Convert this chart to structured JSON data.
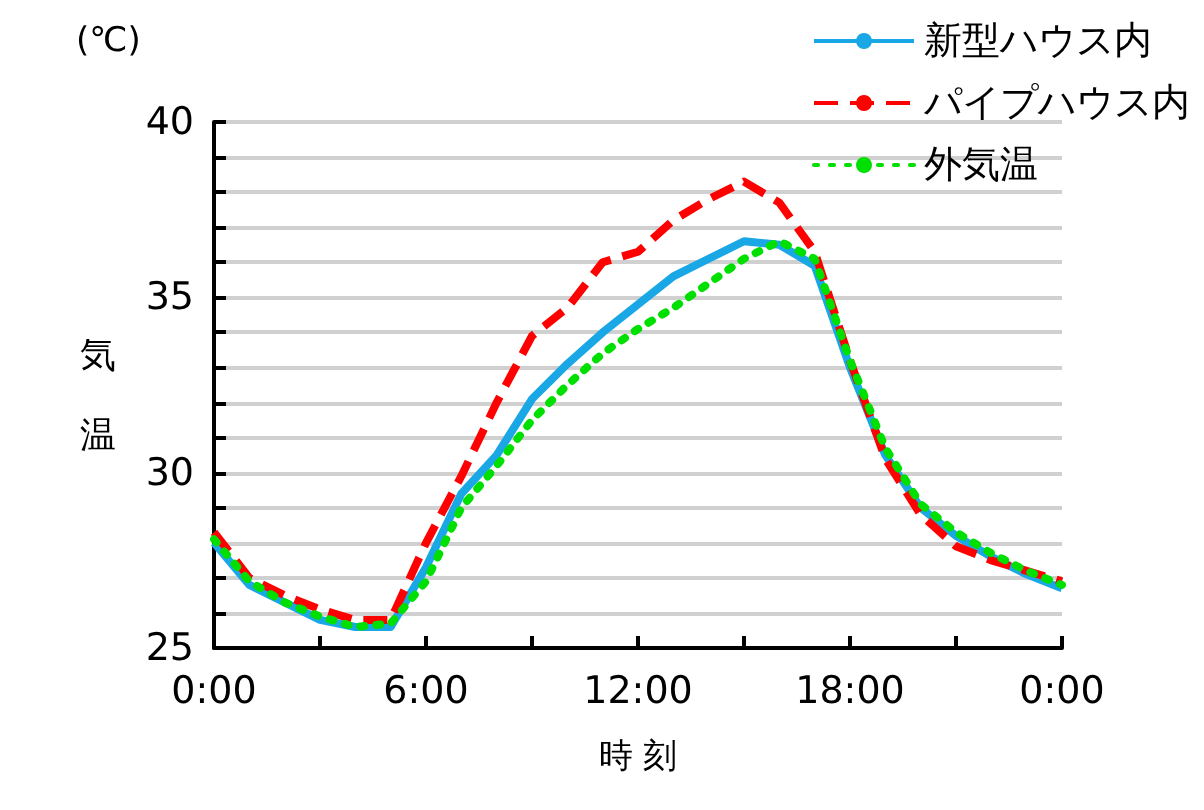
{
  "chart_data": {
    "type": "line",
    "xlabel": "時 刻",
    "ylabel": "気温",
    "annotations": [
      "(℃)"
    ],
    "x": [
      0,
      1,
      2,
      3,
      4,
      5,
      6,
      7,
      8,
      9,
      10,
      11,
      12,
      13,
      14,
      15,
      16,
      17,
      18,
      19,
      20,
      21,
      22,
      23,
      24
    ],
    "xlim": [
      0,
      24
    ],
    "xticks": [
      {
        "value": 0,
        "label": "0:00"
      },
      {
        "value": 3,
        "label": null
      },
      {
        "value": 6,
        "label": "6:00"
      },
      {
        "value": 9,
        "label": null
      },
      {
        "value": 12,
        "label": "12:00"
      },
      {
        "value": 15,
        "label": null
      },
      {
        "value": 18,
        "label": "18:00"
      },
      {
        "value": 21,
        "label": null
      },
      {
        "value": 24,
        "label": "0:00"
      }
    ],
    "ylim": [
      25,
      40
    ],
    "yticks": [
      25,
      {
        "value": 26,
        "label": null
      },
      {
        "value": 27,
        "label": null
      },
      {
        "value": 28,
        "label": null
      },
      {
        "value": 29,
        "label": null
      },
      30,
      {
        "value": 31,
        "label": null
      },
      {
        "value": 32,
        "label": null
      },
      {
        "value": 33,
        "label": null
      },
      {
        "value": 34,
        "label": null
      },
      35,
      {
        "value": 36,
        "label": null
      },
      {
        "value": 37,
        "label": null
      },
      {
        "value": 38,
        "label": null
      },
      {
        "value": 39,
        "label": null
      },
      40
    ],
    "grid": "y",
    "legend": "top right",
    "marker": "none",
    "series": [
      {
        "name": "新型ハウス内",
        "color": "#1aa7e6",
        "line_style": "solid",
        "values": [
          28.0,
          26.8,
          26.3,
          25.8,
          25.6,
          25.6,
          27.3,
          29.4,
          30.5,
          32.1,
          33.1,
          34.0,
          34.8,
          35.6,
          36.1,
          36.6,
          36.5,
          35.9,
          33.0,
          30.5,
          29.0,
          28.2,
          27.6,
          27.1,
          26.7
        ]
      },
      {
        "name": "パイプハウス内",
        "color": "#ff0000",
        "line_style": "dashed",
        "values": [
          28.3,
          27.0,
          26.5,
          26.1,
          25.8,
          25.8,
          28.0,
          29.9,
          32.0,
          33.9,
          34.7,
          36.0,
          36.3,
          37.2,
          37.8,
          38.3,
          37.7,
          36.3,
          33.2,
          30.4,
          28.8,
          27.9,
          27.5,
          27.2,
          26.9
        ]
      },
      {
        "name": "外気温",
        "color": "#00e000",
        "line_style": "dotted",
        "values": [
          28.1,
          26.9,
          26.3,
          25.9,
          25.6,
          25.7,
          26.9,
          29.0,
          30.2,
          31.5,
          32.5,
          33.4,
          34.1,
          34.7,
          35.4,
          36.1,
          36.6,
          36.1,
          33.2,
          30.7,
          29.1,
          28.3,
          27.7,
          27.2,
          26.8
        ]
      }
    ]
  }
}
